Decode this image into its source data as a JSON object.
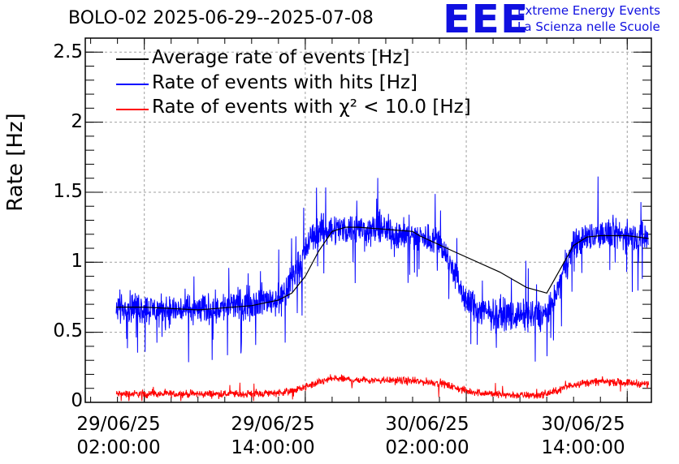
{
  "header": {
    "title": "BOLO-02 2025-06-29--2025-07-08",
    "logo_text": "EEE",
    "org_line1": "Extreme Energy Events",
    "org_line2": "La Scienza nelle Scuole"
  },
  "colors": {
    "black": "#000000",
    "blue": "#0000ff",
    "red": "#ff0000",
    "logo": "#1010e0",
    "grid": "#a0a0a0"
  },
  "chart_data": {
    "type": "line",
    "ylabel": "Rate [Hz]",
    "ylim": [
      0,
      2.6
    ],
    "xlim_hours": [
      -4.4,
      37.8
    ],
    "grid": true,
    "legend_position": "top-left",
    "x_ticks": [
      {
        "date": "29/06/25",
        "time": "02:00:00",
        "hour": 0
      },
      {
        "date": "29/06/25",
        "time": "14:00:00",
        "hour": 12
      },
      {
        "date": "30/06/25",
        "time": "02:00:00",
        "hour": 24
      },
      {
        "date": "30/06/25",
        "time": "14:00:00",
        "hour": 36
      }
    ],
    "y_ticks": [
      "0",
      "0.5",
      "1",
      "1.5",
      "2",
      "2.5"
    ],
    "y_tick_values": [
      0,
      0.5,
      1,
      1.5,
      2,
      2.5
    ],
    "series": [
      {
        "name": "Average rate of events [Hz]",
        "color": "#000000",
        "x_hours": [
          -2.1,
          0,
          4,
          8,
          10,
          11,
          12,
          13,
          14,
          15,
          16,
          20,
          20.5,
          23,
          26.5,
          28.5,
          30,
          31,
          32,
          33,
          34,
          36,
          37.6
        ],
        "values": [
          0.68,
          0.68,
          0.66,
          0.69,
          0.73,
          0.78,
          0.9,
          1.08,
          1.22,
          1.25,
          1.25,
          1.22,
          1.19,
          1.08,
          0.93,
          0.82,
          0.78,
          0.95,
          1.12,
          1.18,
          1.19,
          1.19,
          1.17
        ]
      },
      {
        "name": "Rate of events with hits [Hz]",
        "color": "#0000ff",
        "x_hours": [
          -2.1,
          -1,
          0,
          1,
          2,
          3,
          4,
          5,
          6,
          7,
          8,
          9,
          10,
          10.5,
          11,
          11.5,
          12,
          12.5,
          13,
          14,
          15,
          16,
          17,
          18,
          19,
          20,
          21,
          22,
          23,
          24,
          25,
          26,
          27,
          28,
          29,
          29.5,
          30,
          30.5,
          31,
          31.5,
          32,
          33,
          34,
          35,
          36,
          37,
          37.6
        ],
        "values": [
          0.68,
          0.68,
          0.67,
          0.66,
          0.66,
          0.66,
          0.66,
          0.67,
          0.68,
          0.7,
          0.71,
          0.73,
          0.73,
          0.78,
          0.88,
          0.98,
          1.08,
          1.18,
          1.22,
          1.24,
          1.24,
          1.24,
          1.23,
          1.23,
          1.2,
          1.19,
          1.17,
          1.16,
          0.95,
          0.72,
          0.65,
          0.63,
          0.63,
          0.62,
          0.62,
          0.62,
          0.64,
          0.7,
          0.86,
          1.0,
          1.12,
          1.18,
          1.2,
          1.2,
          1.19,
          1.18,
          1.17
        ],
        "noise_amplitude": 0.16
      },
      {
        "name": "Rate of events with χ² < 10.0 [Hz]",
        "color": "#ff0000",
        "x_hours": [
          -2.1,
          0,
          4,
          8,
          10,
          11,
          12,
          13,
          14,
          16,
          18,
          20,
          22,
          23,
          24,
          26,
          28,
          29,
          30,
          31,
          32,
          34,
          36,
          37.6
        ],
        "values": [
          0.06,
          0.06,
          0.06,
          0.06,
          0.07,
          0.08,
          0.11,
          0.14,
          0.17,
          0.16,
          0.16,
          0.15,
          0.14,
          0.11,
          0.08,
          0.06,
          0.05,
          0.05,
          0.06,
          0.09,
          0.13,
          0.15,
          0.14,
          0.13
        ],
        "noise_amplitude": 0.04
      }
    ]
  }
}
